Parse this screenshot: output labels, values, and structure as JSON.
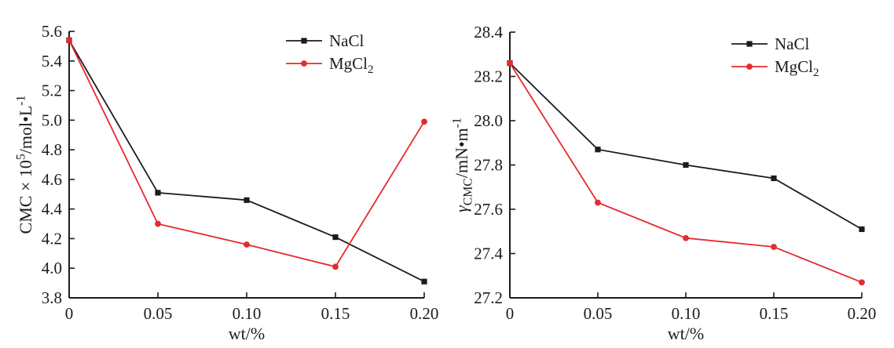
{
  "figure": {
    "background_color": "#ffffff",
    "ink_color": "#1c1c1c",
    "accent_red": "#e42b2e"
  },
  "chart_data": [
    {
      "name": "cmc-vs-salt-concentration",
      "type": "line",
      "title": "",
      "xlabel": "wt/%",
      "ylabel": "CMC × 10⁵/mol•L⁻¹",
      "ylabel_segments": [
        {
          "t": "CMC × 10"
        },
        {
          "t": "5",
          "script": "sup"
        },
        {
          "t": "/mol•L"
        },
        {
          "t": "-1",
          "script": "sup"
        }
      ],
      "x": [
        0,
        0.05,
        0.1,
        0.15,
        0.2
      ],
      "x_tick_labels": [
        "0",
        "0.05",
        "0.10",
        "0.15",
        "0.20"
      ],
      "xlim": [
        0,
        0.2
      ],
      "ylim": [
        3.8,
        5.6
      ],
      "y_ticks": [
        3.8,
        4.0,
        4.2,
        4.4,
        4.6,
        4.8,
        5.0,
        5.2,
        5.4,
        5.6
      ],
      "y_tick_labels": [
        "3.8",
        "4.0",
        "4.2",
        "4.4",
        "4.6",
        "4.8",
        "5.0",
        "5.2",
        "5.4",
        "5.6"
      ],
      "grid": false,
      "legend_position": "top-right",
      "series": [
        {
          "name": "NaCl",
          "label_segments": [
            {
              "t": "NaCl"
            }
          ],
          "color": "#1c1c1c",
          "marker": "square",
          "values": [
            5.54,
            4.51,
            4.46,
            4.21,
            3.91
          ]
        },
        {
          "name": "MgCl₂",
          "label_segments": [
            {
              "t": "MgCl"
            },
            {
              "t": "2",
              "script": "sub"
            }
          ],
          "color": "#e42b2e",
          "marker": "circle",
          "values": [
            5.54,
            4.3,
            4.16,
            4.01,
            4.99
          ]
        }
      ]
    },
    {
      "name": "gamma-cmc-vs-salt-concentration",
      "type": "line",
      "title": "",
      "xlabel": "wt/%",
      "ylabel": "γCMC/mN•m⁻¹",
      "ylabel_segments": [
        {
          "t": "γ",
          "italic": true
        },
        {
          "t": "CMC",
          "script": "sub"
        },
        {
          "t": "/mN•m"
        },
        {
          "t": "-1",
          "script": "sup"
        }
      ],
      "x": [
        0,
        0.05,
        0.1,
        0.15,
        0.2
      ],
      "x_tick_labels": [
        "0",
        "0.05",
        "0.10",
        "0.15",
        "0.20"
      ],
      "xlim": [
        0,
        0.2
      ],
      "ylim": [
        27.2,
        28.4
      ],
      "y_ticks": [
        27.2,
        27.4,
        27.6,
        27.8,
        28.0,
        28.2,
        28.4
      ],
      "y_tick_labels": [
        "27.2",
        "27.4",
        "27.6",
        "27.8",
        "28.0",
        "28.2",
        "28.4"
      ],
      "grid": false,
      "legend_position": "top-right",
      "series": [
        {
          "name": "NaCl",
          "label_segments": [
            {
              "t": "NaCl"
            }
          ],
          "color": "#1c1c1c",
          "marker": "square",
          "values": [
            28.26,
            27.87,
            27.8,
            27.74,
            27.51
          ]
        },
        {
          "name": "MgCl₂",
          "label_segments": [
            {
              "t": "MgCl"
            },
            {
              "t": "2",
              "script": "sub"
            }
          ],
          "color": "#e42b2e",
          "marker": "circle",
          "values": [
            28.26,
            27.63,
            27.47,
            27.43,
            27.27
          ]
        }
      ]
    }
  ]
}
